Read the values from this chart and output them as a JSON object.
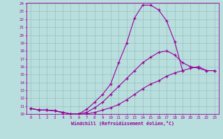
{
  "xlabel": "Windchill (Refroidissement éolien,°C)",
  "color": "#990099",
  "bg_color": "#b8dede",
  "grid_color": "#9bbfbf",
  "ylim": [
    10,
    24
  ],
  "xlim": [
    -0.5,
    23.5
  ],
  "yticks": [
    10,
    11,
    12,
    13,
    14,
    15,
    16,
    17,
    18,
    19,
    20,
    21,
    22,
    23,
    24
  ],
  "xticks": [
    0,
    1,
    2,
    3,
    4,
    5,
    6,
    7,
    8,
    9,
    10,
    11,
    12,
    13,
    14,
    15,
    16,
    17,
    18,
    19,
    20,
    21,
    22,
    23
  ],
  "line1_x": [
    0,
    1,
    2,
    3,
    4,
    5,
    6,
    7,
    8,
    9,
    10,
    11,
    12,
    13,
    14,
    15,
    16,
    17,
    18,
    19
  ],
  "line1_y": [
    10.7,
    10.5,
    10.5,
    10.4,
    10.2,
    10.0,
    10.0,
    10.6,
    11.5,
    12.5,
    13.8,
    16.5,
    19.0,
    22.2,
    23.8,
    23.8,
    23.2,
    21.8,
    19.2,
    15.5
  ],
  "line2_x": [
    0,
    1,
    2,
    3,
    4,
    5,
    6,
    7,
    8,
    9,
    10,
    11,
    12,
    13,
    14,
    15,
    16,
    17,
    18,
    19,
    20,
    21,
    22,
    23
  ],
  "line2_y": [
    10.7,
    10.5,
    10.5,
    10.4,
    10.2,
    10.0,
    10.0,
    10.2,
    10.8,
    11.5,
    12.5,
    13.5,
    14.5,
    15.5,
    16.5,
    17.2,
    17.8,
    18.0,
    17.5,
    16.5,
    16.0,
    15.8,
    15.5,
    15.5
  ],
  "line3_x": [
    0,
    1,
    2,
    3,
    4,
    5,
    6,
    7,
    8,
    9,
    10,
    11,
    12,
    13,
    14,
    15,
    16,
    17,
    18,
    19,
    20,
    21,
    22,
    23
  ],
  "line3_y": [
    10.7,
    10.5,
    10.5,
    10.4,
    10.2,
    10.0,
    10.0,
    10.0,
    10.2,
    10.5,
    10.8,
    11.2,
    11.8,
    12.5,
    13.2,
    13.8,
    14.2,
    14.8,
    15.2,
    15.5,
    15.8,
    16.0,
    15.5,
    15.5
  ]
}
